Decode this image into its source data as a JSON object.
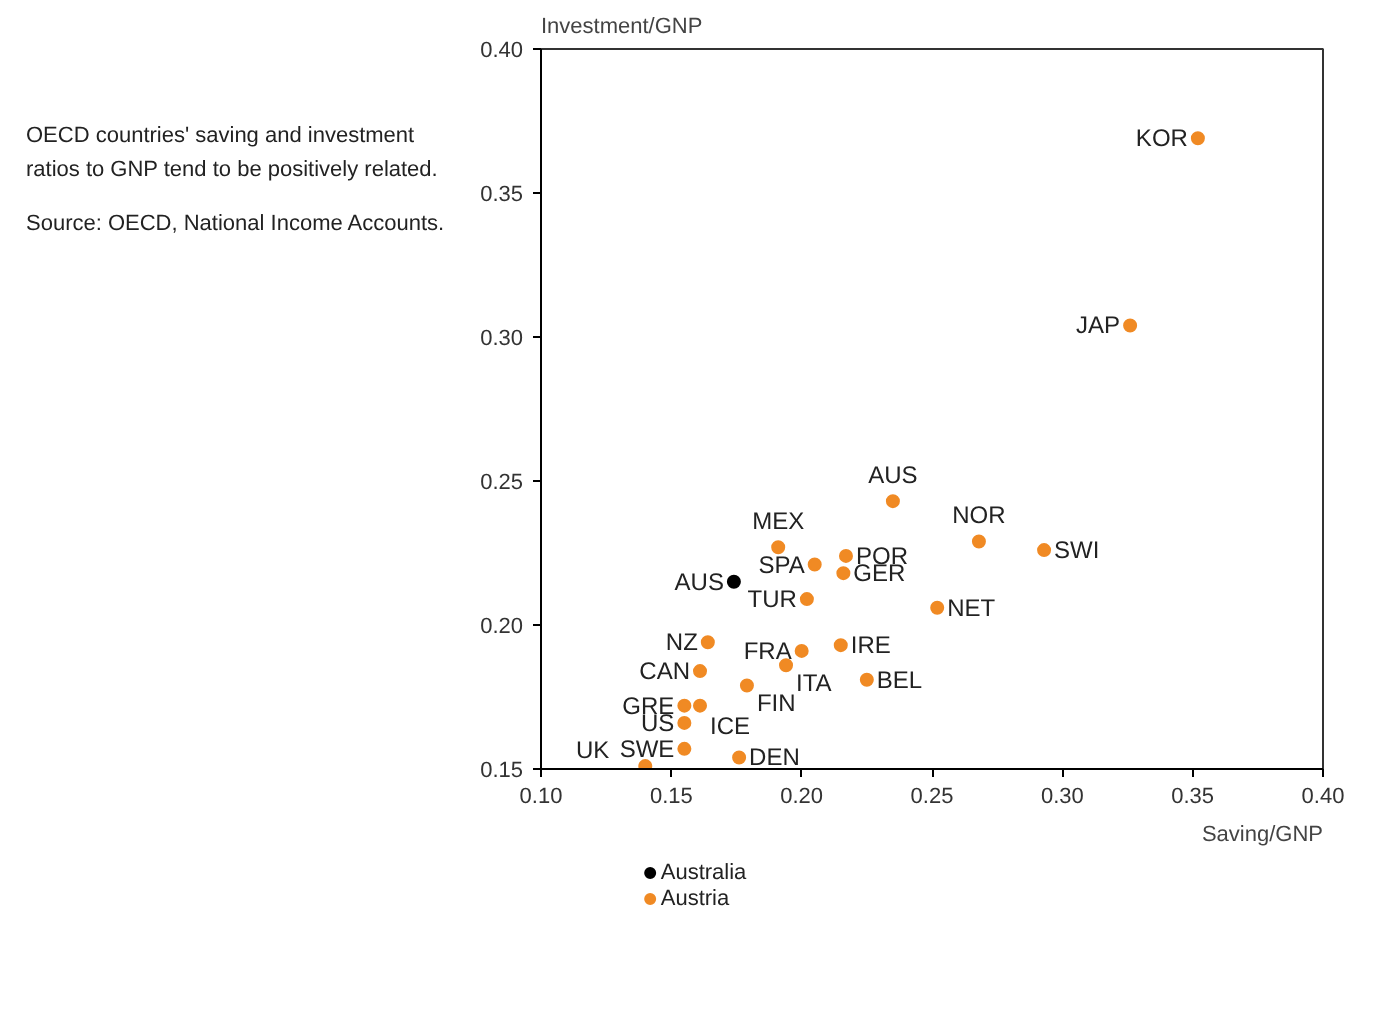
{
  "chart_data": {
    "type": "scatter",
    "xlabel": "Saving/GNP",
    "ylabel": "Investment/GNP",
    "xlim": [
      0.1,
      0.4
    ],
    "ylim": [
      0.15,
      0.4
    ],
    "xticks": [
      {
        "value": 0.1,
        "label": "0.10"
      },
      {
        "value": 0.15,
        "label": "0.15"
      },
      {
        "value": 0.2,
        "label": "0.20"
      },
      {
        "value": 0.25,
        "label": "0.25"
      },
      {
        "value": 0.3,
        "label": "0.30"
      },
      {
        "value": 0.35,
        "label": "0.35"
      },
      {
        "value": 0.4,
        "label": "0.40"
      }
    ],
    "yticks": [
      {
        "value": 0.15,
        "label": "0.15"
      },
      {
        "value": 0.2,
        "label": "0.20"
      },
      {
        "value": 0.25,
        "label": "0.25"
      },
      {
        "value": 0.3,
        "label": "0.30"
      },
      {
        "value": 0.35,
        "label": "0.35"
      },
      {
        "value": 0.4,
        "label": "0.40"
      }
    ],
    "grid": false,
    "legend": "bottom left",
    "marker": "circle",
    "series": [
      {
        "name": "Australia",
        "color": "#000000",
        "x": [
          0.174
        ],
        "values": [
          0.215
        ]
      },
      {
        "name": "Austria",
        "color": "#f08a24",
        "x": [
          0.352,
          0.326,
          0.235,
          0.268,
          0.293,
          0.191,
          0.217,
          0.205,
          0.216,
          0.202,
          0.252,
          0.164,
          0.2,
          0.215,
          0.161,
          0.194,
          0.225,
          0.179,
          0.155,
          0.161,
          0.155,
          0.155,
          0.176,
          0.14
        ],
        "values": [
          0.369,
          0.304,
          0.243,
          0.229,
          0.226,
          0.227,
          0.224,
          0.221,
          0.218,
          0.209,
          0.206,
          0.194,
          0.191,
          0.193,
          0.184,
          0.186,
          0.181,
          0.179,
          0.172,
          0.172,
          0.166,
          0.157,
          0.154,
          0.151
        ]
      }
    ],
    "annotations": [
      "OECD countries' saving and investment ratios to GNP tend to be positively related.",
      "Source:  OECD, National Income Accounts.",
      {
        "text": "KOR",
        "x": 0.352,
        "y": 0.369
      },
      {
        "text": "JAP",
        "x": 0.326,
        "y": 0.304
      },
      {
        "text": "AUS",
        "x": 0.235,
        "y": 0.243
      },
      {
        "text": "NOR",
        "x": 0.268,
        "y": 0.229
      },
      {
        "text": "SWI",
        "x": 0.293,
        "y": 0.226
      },
      {
        "text": "MEX",
        "x": 0.191,
        "y": 0.227
      },
      {
        "text": "POR",
        "x": 0.217,
        "y": 0.224
      },
      {
        "text": "SPA",
        "x": 0.205,
        "y": 0.221
      },
      {
        "text": "GER",
        "x": 0.216,
        "y": 0.218
      },
      {
        "text": "AUS",
        "x": 0.174,
        "y": 0.215
      },
      {
        "text": "TUR",
        "x": 0.202,
        "y": 0.209
      },
      {
        "text": "NET",
        "x": 0.252,
        "y": 0.206
      },
      {
        "text": "NZ",
        "x": 0.164,
        "y": 0.194
      },
      {
        "text": "FRA",
        "x": 0.2,
        "y": 0.191
      },
      {
        "text": "IRE",
        "x": 0.215,
        "y": 0.193
      },
      {
        "text": "CAN",
        "x": 0.161,
        "y": 0.184
      },
      {
        "text": "ITA",
        "x": 0.194,
        "y": 0.186
      },
      {
        "text": "BEL",
        "x": 0.225,
        "y": 0.181
      },
      {
        "text": "FIN",
        "x": 0.179,
        "y": 0.179
      },
      {
        "text": "GRE",
        "x": 0.155,
        "y": 0.172
      },
      {
        "text": "ICE",
        "x": 0.161,
        "y": 0.172
      },
      {
        "text": "US",
        "x": 0.155,
        "y": 0.166
      },
      {
        "text": "SWE",
        "x": 0.155,
        "y": 0.157
      },
      {
        "text": "DEN",
        "x": 0.176,
        "y": 0.154
      },
      {
        "text": "UK",
        "x": 0.14,
        "y": 0.151
      }
    ]
  }
}
